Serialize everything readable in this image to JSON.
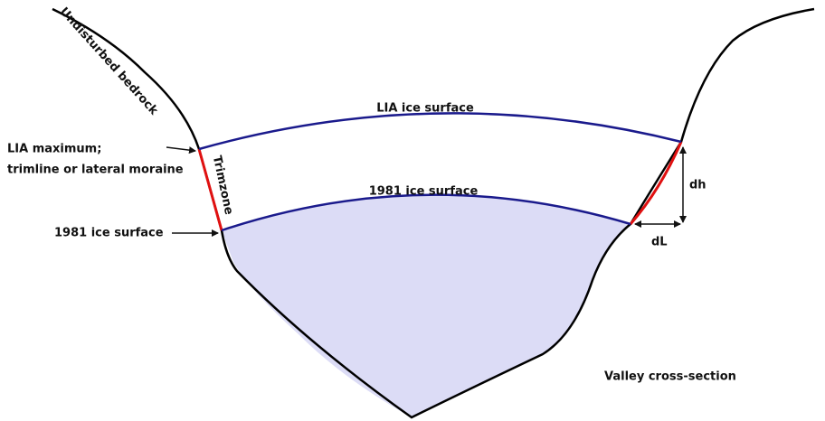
{
  "labels": {
    "bedrock": "Undisturbed bedrock",
    "lia_surface": "LIA ice surface",
    "lia_maximum": [
      "LIA maximum;",
      "trimline or lateral moraine"
    ],
    "trimzone": "Trimzone",
    "surface_1981_center": "1981 ice surface",
    "surface_1981_left": "1981 ice surface",
    "dh": "dh",
    "dl": "dL",
    "valley": "Valley cross-section"
  }
}
